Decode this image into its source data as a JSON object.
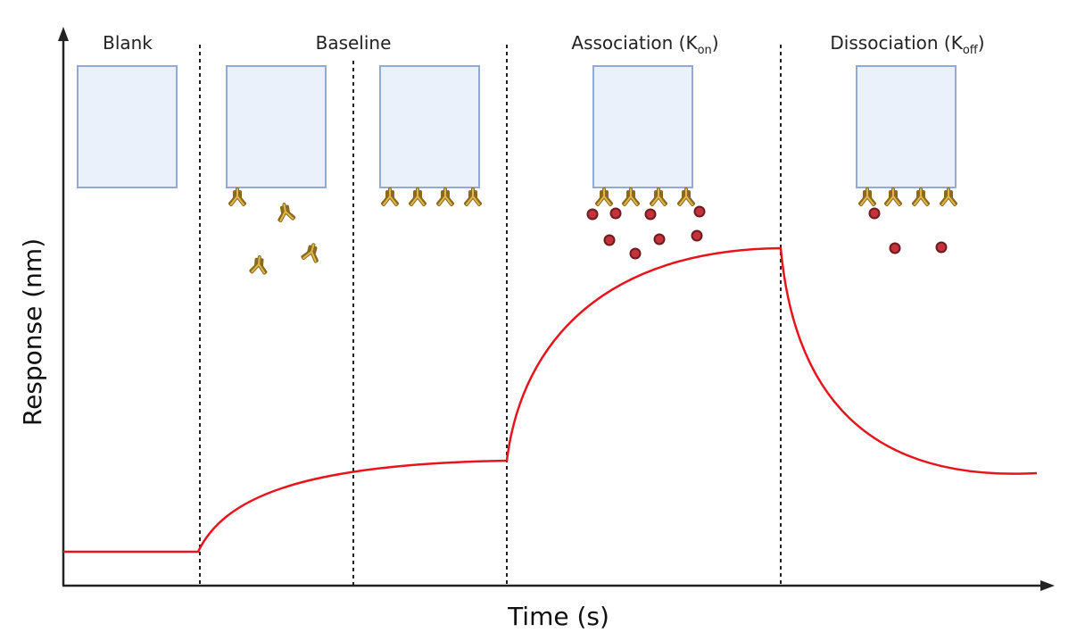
{
  "phases": [
    {
      "label": "Blank"
    },
    {
      "label": "Baseline"
    },
    {
      "label": "Association (K",
      "subscript": "on",
      "suffix": ")"
    },
    {
      "label": "Dissociation (K",
      "subscript": "off",
      "suffix": ")"
    }
  ],
  "axes": {
    "y_label": "Response (nm)",
    "x_label": "Time (s)"
  }
}
